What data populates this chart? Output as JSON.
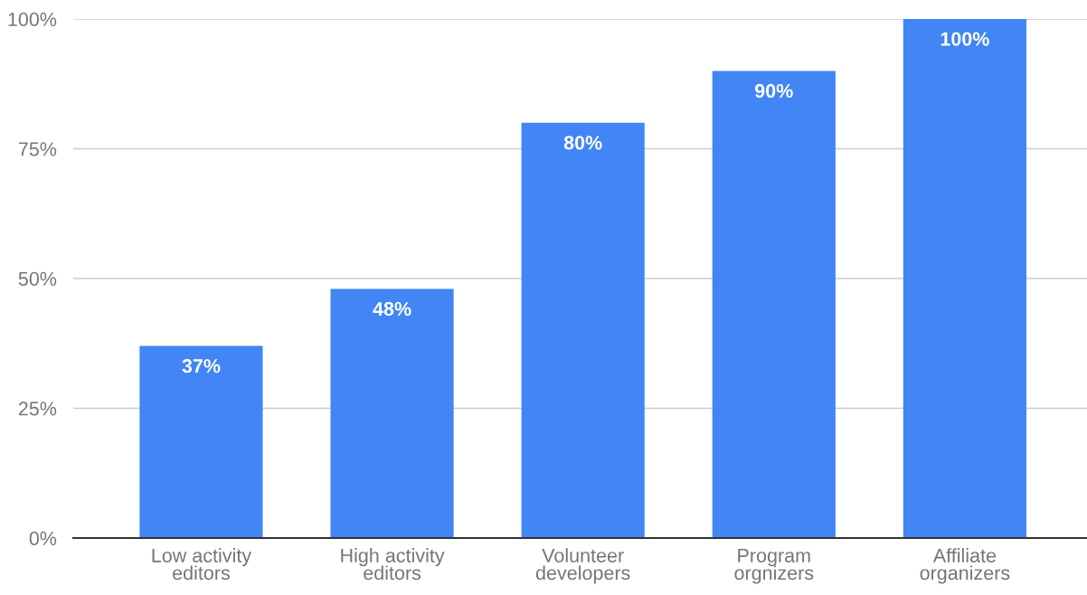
{
  "chart_data": {
    "type": "bar",
    "categories": [
      "Low activity\neditors",
      "High activity\neditors",
      "Volunteer\ndevelopers",
      "Program\norgnizers",
      "Affiliate\norganizers"
    ],
    "values": [
      37,
      48,
      80,
      90,
      100
    ],
    "color": "#4285f4",
    "value_labels": [
      "37%",
      "48%",
      "80%",
      "90%",
      "100%"
    ],
    "ylim": [
      0,
      100
    ],
    "yticks": [
      {
        "value": 0,
        "label": "0%"
      },
      {
        "value": 25,
        "label": "25%"
      },
      {
        "value": 50,
        "label": "50%"
      },
      {
        "value": 75,
        "label": "75%"
      },
      {
        "value": 100,
        "label": "100%"
      }
    ],
    "grid": "y",
    "legend": false
  }
}
